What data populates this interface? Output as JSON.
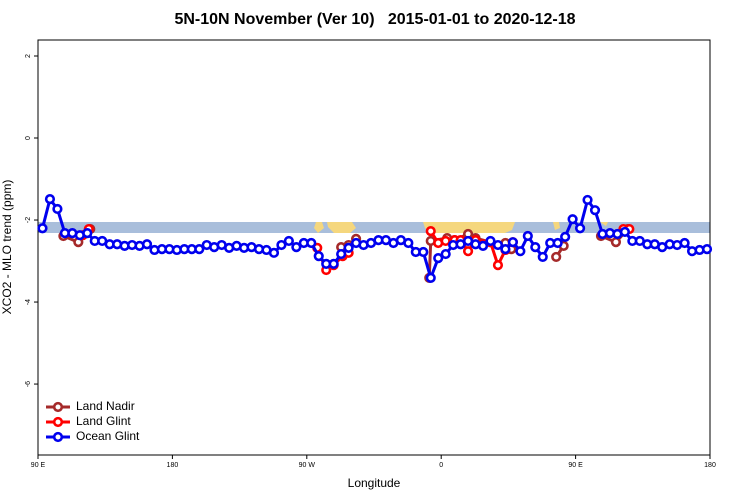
{
  "chart_data": {
    "type": "line",
    "title": "5N-10N November (Ver 10)   2015-01-01 to 2020-12-18",
    "xlabel": "Longitude",
    "ylabel": "XCO2 - MLO trend (ppm)",
    "xlim": [
      90,
      540
    ],
    "ylim": [
      -7.73,
      2.39
    ],
    "xticks": [
      {
        "value": 90,
        "label": "90 E"
      },
      {
        "value": 180,
        "label": "180"
      },
      {
        "value": 270,
        "label": "90 W"
      },
      {
        "value": 360,
        "label": "0"
      },
      {
        "value": 450,
        "label": "90 E"
      },
      {
        "value": 540,
        "label": "180"
      }
    ],
    "yticks": [
      2,
      0,
      -2,
      -4,
      -6
    ],
    "legend": "bottom-left",
    "series": [
      {
        "name": "Land Nadir",
        "color": "#a52a2a",
        "x": [
          107,
          117,
          125,
          200,
          293,
          298,
          303,
          340,
          352,
          353,
          364,
          369,
          378,
          383,
          393,
          403,
          407,
          420,
          437,
          442,
          455,
          467,
          477,
          485
        ],
        "values": [
          -2.39,
          -2.54,
          -2.22,
          null,
          -2.66,
          -2.61,
          -2.46,
          null,
          -3.41,
          -2.51,
          -2.44,
          -2.49,
          -2.34,
          -2.44,
          -2.54,
          -2.56,
          -2.71,
          null,
          -2.9,
          -2.63,
          null,
          -2.39,
          -2.54,
          -2.22
        ]
      },
      {
        "name": "Land Glint",
        "color": "#ff0000",
        "x": [
          120,
          124,
          200,
          277,
          283,
          288,
          294,
          298,
          330,
          353,
          358,
          363,
          369,
          373,
          378,
          383,
          388,
          393,
          398,
          403,
          408,
          450,
          482,
          486
        ],
        "values": [
          -2.37,
          -2.22,
          null,
          -2.68,
          -3.22,
          -3.1,
          -2.88,
          -2.8,
          null,
          -2.27,
          -2.56,
          -2.51,
          -2.49,
          -2.49,
          -2.76,
          -2.49,
          -2.59,
          -2.54,
          -3.1,
          -2.73,
          -2.54,
          null,
          -2.22,
          -2.22
        ]
      },
      {
        "name": "Ocean Glint",
        "color": "#0000ee",
        "x": [
          93,
          98,
          103,
          108,
          113,
          118,
          123,
          128,
          133,
          138,
          143,
          148,
          153,
          158,
          163,
          168,
          173,
          178,
          183,
          188,
          193,
          198,
          203,
          208,
          213,
          218,
          223,
          228,
          233,
          238,
          243,
          248,
          253,
          258,
          263,
          268,
          273,
          278,
          283,
          288,
          293,
          298,
          303,
          308,
          313,
          318,
          323,
          328,
          333,
          338,
          343,
          348,
          353,
          358,
          363,
          368,
          373,
          378,
          383,
          388,
          393,
          398,
          403,
          408,
          413,
          418,
          423,
          428,
          433,
          438,
          443,
          448,
          453,
          458,
          463,
          468,
          473,
          478,
          483,
          488,
          493,
          498,
          503,
          508,
          513,
          518,
          523,
          528,
          533,
          538
        ],
        "values": [
          -2.2,
          -1.49,
          -1.73,
          -2.32,
          -2.32,
          -2.37,
          -2.32,
          -2.51,
          -2.51,
          -2.59,
          -2.59,
          -2.63,
          -2.61,
          -2.63,
          -2.59,
          -2.73,
          -2.71,
          -2.71,
          -2.73,
          -2.71,
          -2.71,
          -2.71,
          -2.61,
          -2.66,
          -2.61,
          -2.68,
          -2.63,
          -2.68,
          -2.66,
          -2.71,
          -2.73,
          -2.8,
          -2.61,
          -2.51,
          -2.66,
          -2.56,
          -2.56,
          -2.88,
          -3.07,
          -3.07,
          -2.83,
          -2.68,
          -2.56,
          -2.61,
          -2.56,
          -2.49,
          -2.49,
          -2.56,
          -2.49,
          -2.56,
          -2.78,
          -2.78,
          -3.41,
          -2.93,
          -2.83,
          -2.61,
          -2.59,
          -2.51,
          -2.59,
          -2.63,
          -2.51,
          -2.61,
          -2.71,
          -2.54,
          -2.76,
          -2.39,
          -2.66,
          -2.9,
          -2.56,
          -2.56,
          -2.41,
          -1.98,
          -2.2,
          -1.51,
          -1.76,
          -2.34,
          -2.32,
          -2.34,
          -2.29,
          -2.51,
          -2.51,
          -2.59,
          -2.59,
          -2.66,
          -2.59,
          -2.61,
          -2.56,
          -2.76,
          -2.73,
          -2.71
        ]
      }
    ]
  }
}
